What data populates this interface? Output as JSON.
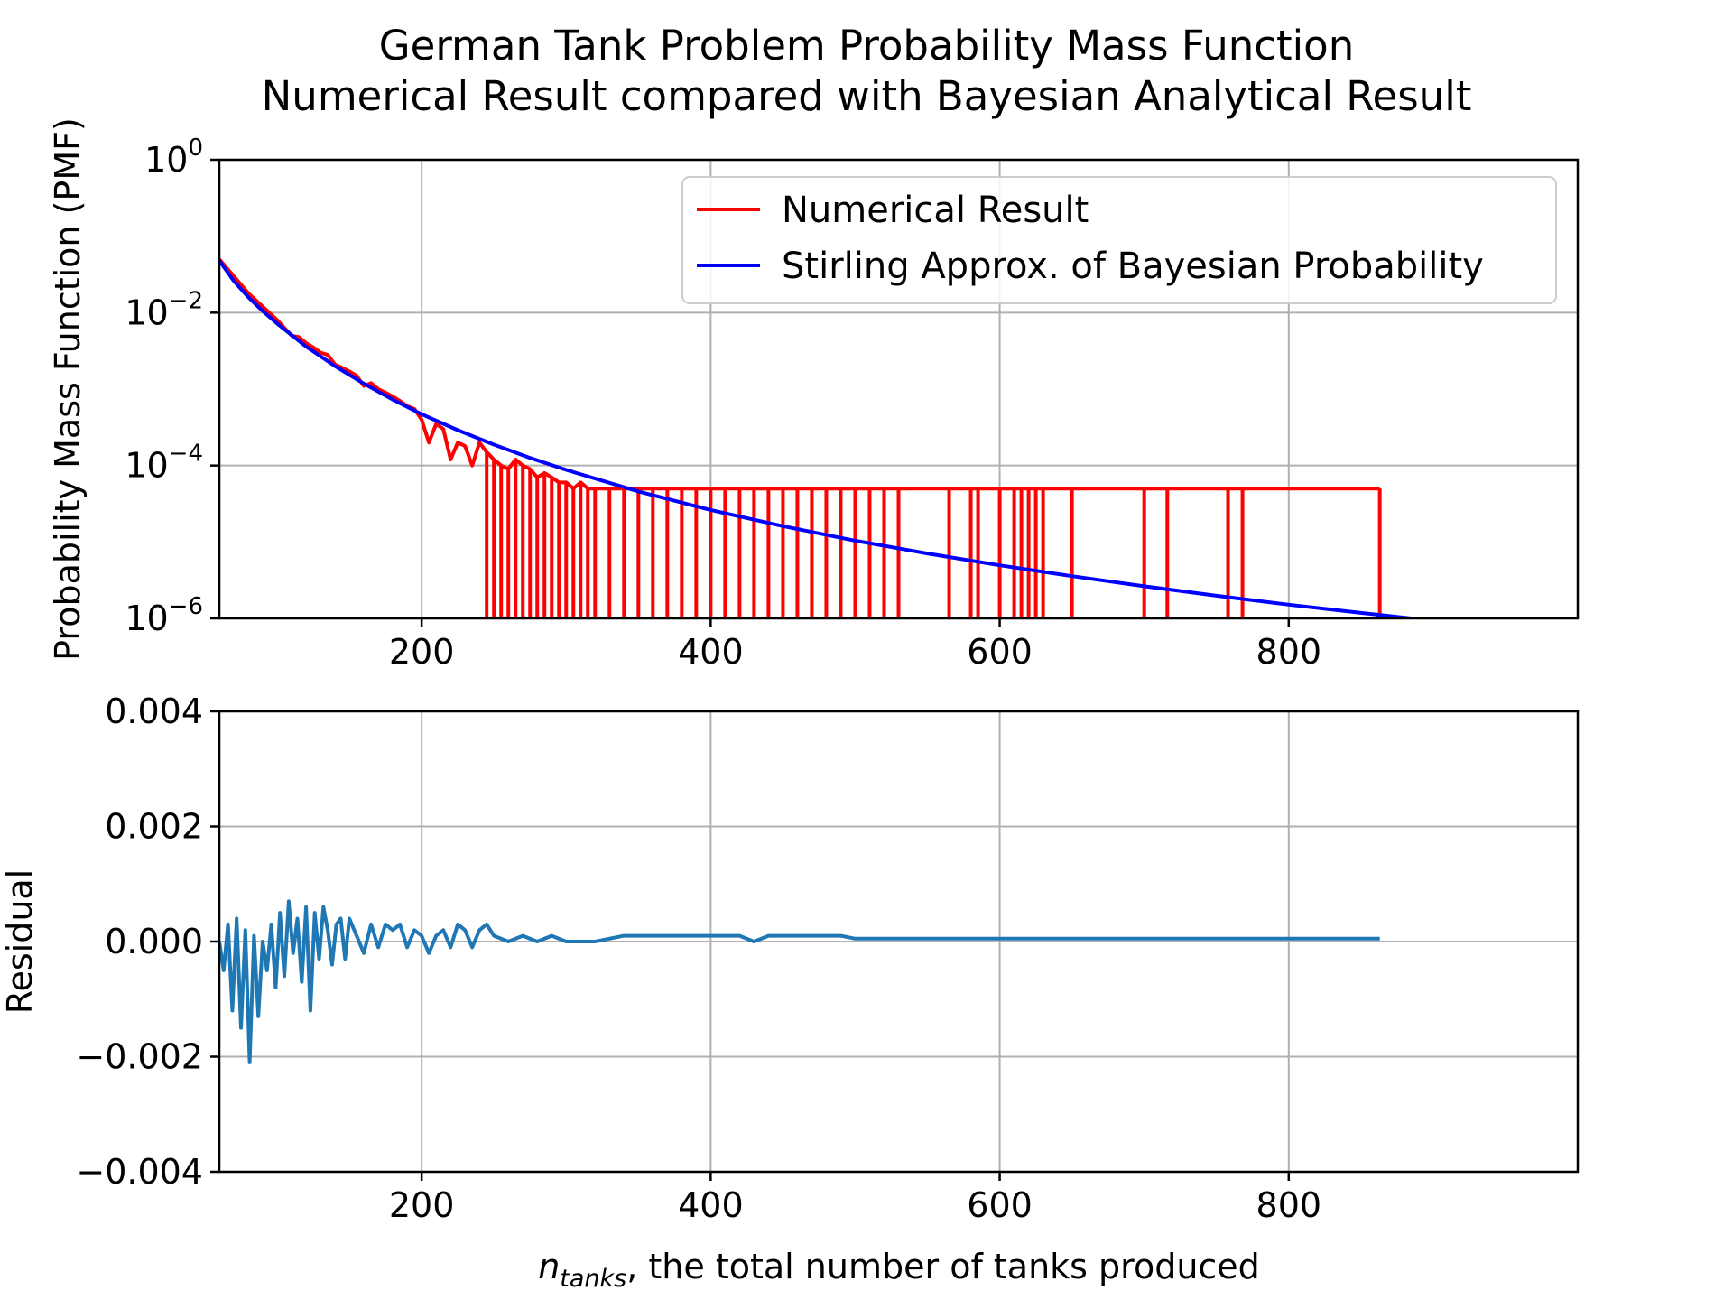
{
  "figure": {
    "title_line1": "German Tank Problem Probability Mass Function",
    "title_line2": "Numerical Result compared with Bayesian Analytical Result"
  },
  "chart_data": [
    {
      "type": "line",
      "title": "",
      "xlabel": "",
      "ylabel": "Probability Mass Function (PMF)",
      "yscale": "log",
      "xlim": [
        60,
        1000
      ],
      "ylim": [
        1e-06,
        1
      ],
      "x_ticks": [
        200,
        400,
        600,
        800
      ],
      "x_tick_labels": [
        "200",
        "400",
        "600",
        "800"
      ],
      "y_ticks": [
        1e-06,
        0.0001,
        0.01,
        1
      ],
      "y_tick_labels": [
        {
          "base": "10",
          "exp": "−6"
        },
        {
          "base": "10",
          "exp": "−4"
        },
        {
          "base": "10",
          "exp": "−2"
        },
        {
          "base": "10",
          "exp": "0"
        }
      ],
      "grid": true,
      "legend_position": "top-right",
      "series": [
        {
          "name": "Numerical Result",
          "color": "#ff0000",
          "x": [
            60,
            70,
            80,
            90,
            100,
            110,
            115,
            120,
            125,
            130,
            135,
            140,
            145,
            150,
            155,
            160,
            165,
            170,
            175,
            180,
            185,
            190,
            195,
            200,
            205,
            210,
            215,
            220,
            225,
            230,
            235,
            240,
            245,
            250,
            255,
            260,
            265,
            270,
            275,
            280,
            285,
            290,
            295,
            300,
            305,
            310,
            315,
            320,
            330,
            340,
            350,
            360,
            370,
            380,
            390,
            400,
            410,
            420,
            430,
            440,
            450,
            460,
            470,
            480,
            490,
            500,
            510,
            520,
            530,
            565,
            580,
            585,
            600,
            610,
            615,
            620,
            625,
            630,
            650,
            700,
            716,
            758,
            768,
            863
          ],
          "y": [
            0.05,
            0.03,
            0.018,
            0.012,
            0.008,
            0.005,
            0.0048,
            0.004,
            0.0035,
            0.003,
            0.0028,
            0.0021,
            0.0019,
            0.0017,
            0.0015,
            0.0011,
            0.0012,
            0.001,
            0.0009,
            0.0008,
            0.0007,
            0.0006,
            0.00055,
            0.0004,
            0.0002,
            0.00035,
            0.0003,
            0.00012,
            0.0002,
            0.00018,
            0.0001,
            0.0002,
            0.00015,
            0.00012,
            0.0001,
            9e-05,
            0.00012,
            0.0001,
            9e-05,
            7e-05,
            8e-05,
            7e-05,
            6e-05,
            6e-05,
            5e-05,
            6e-05,
            5e-05,
            5e-05,
            5e-05,
            5e-05,
            5e-05,
            5e-05,
            5e-05,
            5e-05,
            5e-05,
            5e-05,
            5e-05,
            5e-05,
            5e-05,
            5e-05,
            5e-05,
            5e-05,
            5e-05,
            5e-05,
            5e-05,
            5e-05,
            5e-05,
            5e-05,
            5e-05,
            5e-05,
            5e-05,
            5e-05,
            5e-05,
            5e-05,
            5e-05,
            5e-05,
            5e-05,
            5e-05,
            5e-05,
            5e-05,
            5e-05,
            5e-05,
            5e-05,
            5e-05
          ]
        },
        {
          "name": "Stirling Approx. of Bayesian Probability",
          "color": "#0000ff",
          "x": [
            60,
            70,
            80,
            90,
            100,
            120,
            140,
            160,
            180,
            200,
            225,
            250,
            275,
            300,
            350,
            400,
            450,
            500,
            550,
            600,
            650,
            700,
            750,
            800,
            850,
            900,
            915
          ],
          "y": [
            0.048,
            0.026,
            0.016,
            0.0105,
            0.0072,
            0.0036,
            0.002,
            0.00118,
            0.00073,
            0.00047,
            0.00029,
            0.000188,
            0.000126,
            8.76e-05,
            4.58e-05,
            2.62e-05,
            1.61e-05,
            1.04e-05,
            7.06e-06,
            4.95e-06,
            3.57e-06,
            2.63e-06,
            1.98e-06,
            1.51e-06,
            1.18e-06,
            9.3e-07,
            8.7e-07
          ]
        }
      ]
    },
    {
      "type": "line",
      "title": "",
      "xlabel": "n_tanks, the total number of tanks produced",
      "xlabel_var": "n",
      "xlabel_sub": "tanks",
      "xlabel_rest": ", the total number of tanks produced",
      "ylabel": "Residual",
      "xlim": [
        60,
        1000
      ],
      "ylim": [
        -0.004,
        0.004
      ],
      "x_ticks": [
        200,
        400,
        600,
        800
      ],
      "x_tick_labels": [
        "200",
        "400",
        "600",
        "800"
      ],
      "y_ticks": [
        -0.004,
        -0.002,
        0,
        0.002,
        0.004
      ],
      "y_tick_labels": [
        "−0.004",
        "−0.002",
        "0.000",
        "0.002",
        "0.004"
      ],
      "grid": true,
      "series": [
        {
          "name": "",
          "color": "#1f77b4",
          "x": [
            60,
            63,
            66,
            69,
            72,
            75,
            78,
            81,
            84,
            87,
            90,
            93,
            96,
            99,
            102,
            105,
            108,
            111,
            114,
            117,
            120,
            123,
            126,
            129,
            132,
            135,
            138,
            141,
            144,
            147,
            150,
            155,
            160,
            165,
            170,
            175,
            180,
            185,
            190,
            195,
            200,
            205,
            210,
            215,
            220,
            225,
            230,
            235,
            240,
            245,
            250,
            260,
            270,
            280,
            290,
            300,
            310,
            320,
            340,
            360,
            380,
            400,
            420,
            430,
            440,
            460,
            470,
            480,
            490,
            500,
            550,
            600,
            650,
            700,
            750,
            800,
            863
          ],
          "y": [
            0.0,
            -0.0005,
            0.0003,
            -0.0012,
            0.0004,
            -0.0015,
            0.0002,
            -0.0021,
            0.0001,
            -0.0013,
            0.0,
            -0.0005,
            0.0003,
            -0.0008,
            0.0005,
            -0.0006,
            0.0007,
            -0.0002,
            0.0004,
            -0.0007,
            0.0006,
            -0.0012,
            0.0005,
            -0.0003,
            0.0006,
            0.0002,
            -0.0004,
            0.0003,
            0.0004,
            -0.0003,
            0.0004,
            0.0001,
            -0.0002,
            0.0003,
            -0.0001,
            0.0003,
            0.0002,
            0.0003,
            -0.0001,
            0.0002,
            0.0001,
            -0.0002,
            0.0001,
            0.0002,
            -0.0001,
            0.0003,
            0.0002,
            -0.0001,
            0.0002,
            0.0003,
            0.0001,
            0.0,
            0.0001,
            0.0,
            0.0001,
            0.0,
            0.0,
            0.0,
            0.0001,
            0.0001,
            0.0001,
            0.0001,
            0.0001,
            0.0,
            0.0001,
            0.0001,
            0.0001,
            0.0001,
            0.0001,
            5e-05,
            5e-05,
            5e-05,
            5e-05,
            5e-05,
            5e-05,
            5e-05,
            5e-05
          ]
        }
      ]
    }
  ]
}
